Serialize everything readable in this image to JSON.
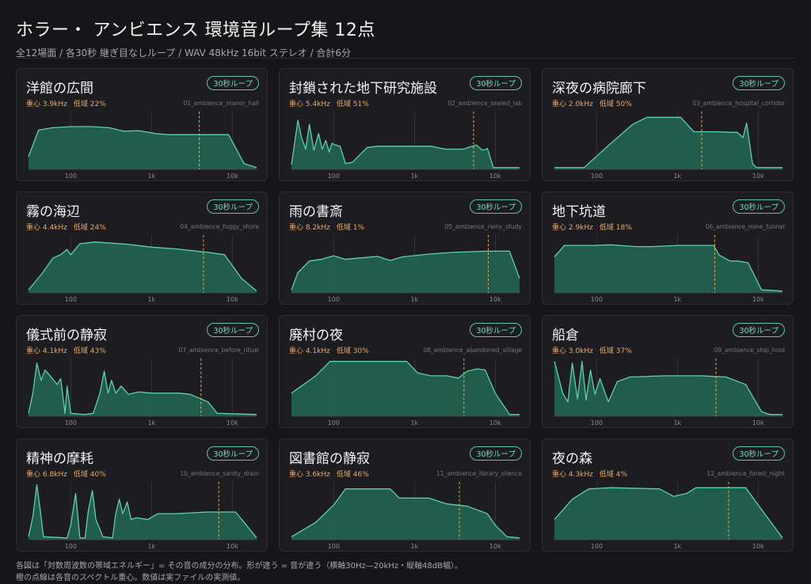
{
  "header": {
    "title": "ホラー・ アンビエンス 環境音ループ集 12点",
    "subtitle": "全12場面 / 各30秒 継ぎ目なしループ / WAV 48kHz 16bit ステレオ / 合計6分"
  },
  "footer": {
    "line1": "各図は「対数周波数の帯域エネルギー」= その音の成分の分布。形が違う = 音が違う（横軸30Hz—20kHz・縦軸48dB幅）。",
    "line2": "橙の点線は各音のスペクトル重心。数値は実ファイルの実測値。"
  },
  "colors": {
    "fill": "#23604e",
    "stroke": "#5fd0ac",
    "centroid": "#e8a86a",
    "gridline": "#3a3a40"
  },
  "chart_data": [
    {
      "type": "area",
      "title": "洋館の広間",
      "badge": "30秒ループ",
      "centroid_label": "重心 3.9kHz",
      "low_label": "低域 22%",
      "file": "01_ambience_manor_hall",
      "x_ticks": [
        "100",
        "1k",
        "10k"
      ],
      "xscale": "log",
      "xlim": [
        30,
        20000
      ],
      "centroid_hz": 3900,
      "points": [
        [
          30,
          0.22
        ],
        [
          40,
          0.68
        ],
        [
          60,
          0.72
        ],
        [
          100,
          0.74
        ],
        [
          180,
          0.74
        ],
        [
          300,
          0.72
        ],
        [
          450,
          0.66
        ],
        [
          700,
          0.67
        ],
        [
          1100,
          0.62
        ],
        [
          1600,
          0.6
        ],
        [
          3000,
          0.6
        ],
        [
          5500,
          0.6
        ],
        [
          9000,
          0.6
        ],
        [
          14000,
          0.1
        ],
        [
          20000,
          0.03
        ]
      ]
    },
    {
      "type": "area",
      "title": "封鎖された地下研究施設",
      "badge": "30秒ループ",
      "centroid_label": "重心 5.4kHz",
      "low_label": "低域 51%",
      "file": "02_ambience_sealed_lab",
      "x_ticks": [
        "100",
        "1k",
        "10k"
      ],
      "xscale": "log",
      "xlim": [
        30,
        20000
      ],
      "centroid_hz": 5400,
      "points": [
        [
          30,
          0.08
        ],
        [
          36,
          0.85
        ],
        [
          40,
          0.55
        ],
        [
          45,
          0.35
        ],
        [
          50,
          0.78
        ],
        [
          57,
          0.33
        ],
        [
          65,
          0.62
        ],
        [
          72,
          0.35
        ],
        [
          80,
          0.5
        ],
        [
          88,
          0.3
        ],
        [
          95,
          0.45
        ],
        [
          105,
          0.42
        ],
        [
          120,
          0.4
        ],
        [
          140,
          0.1
        ],
        [
          170,
          0.12
        ],
        [
          260,
          0.38
        ],
        [
          350,
          0.4
        ],
        [
          1000,
          0.4
        ],
        [
          1600,
          0.4
        ],
        [
          2400,
          0.35
        ],
        [
          4000,
          0.35
        ],
        [
          5800,
          0.42
        ],
        [
          7000,
          0.33
        ],
        [
          8000,
          0.36
        ],
        [
          9500,
          0.03
        ],
        [
          20000,
          0.03
        ]
      ]
    },
    {
      "type": "area",
      "title": "深夜の病院廊下",
      "badge": "30秒ループ",
      "centroid_label": "重心 2.0kHz",
      "low_label": "低域 50%",
      "file": "03_ambience_hospital_corridor",
      "x_ticks": [
        "100",
        "1k",
        "10k"
      ],
      "xscale": "log",
      "xlim": [
        30,
        20000
      ],
      "centroid_hz": 2000,
      "points": [
        [
          30,
          0.03
        ],
        [
          70,
          0.03
        ],
        [
          150,
          0.45
        ],
        [
          280,
          0.78
        ],
        [
          420,
          0.9
        ],
        [
          1100,
          0.9
        ],
        [
          1600,
          0.65
        ],
        [
          3000,
          0.65
        ],
        [
          5500,
          0.64
        ],
        [
          6500,
          0.55
        ],
        [
          7200,
          0.8
        ],
        [
          8500,
          0.1
        ],
        [
          9500,
          0.03
        ],
        [
          20000,
          0.03
        ]
      ]
    },
    {
      "type": "area",
      "title": "霧の海辺",
      "badge": "30秒ループ",
      "centroid_label": "重心 4.4kHz",
      "low_label": "低域 24%",
      "file": "04_ambience_foggy_shore",
      "x_ticks": [
        "100",
        "1k",
        "10k"
      ],
      "xscale": "log",
      "xlim": [
        30,
        20000
      ],
      "centroid_hz": 4400,
      "points": [
        [
          30,
          0.05
        ],
        [
          45,
          0.35
        ],
        [
          60,
          0.6
        ],
        [
          75,
          0.66
        ],
        [
          90,
          0.75
        ],
        [
          100,
          0.66
        ],
        [
          130,
          0.85
        ],
        [
          200,
          0.88
        ],
        [
          500,
          0.84
        ],
        [
          1000,
          0.79
        ],
        [
          2000,
          0.76
        ],
        [
          5000,
          0.7
        ],
        [
          8000,
          0.66
        ],
        [
          13000,
          0.25
        ],
        [
          20000,
          0.03
        ]
      ]
    },
    {
      "type": "area",
      "title": "雨の書斎",
      "badge": "30秒ループ",
      "centroid_label": "重心 8.2kHz",
      "low_label": "低域 1%",
      "file": "05_ambience_rainy_study",
      "x_ticks": [
        "100",
        "1k",
        "10k"
      ],
      "xscale": "log",
      "xlim": [
        30,
        20000
      ],
      "centroid_hz": 8200,
      "points": [
        [
          30,
          0.05
        ],
        [
          36,
          0.35
        ],
        [
          50,
          0.55
        ],
        [
          70,
          0.58
        ],
        [
          100,
          0.64
        ],
        [
          140,
          0.58
        ],
        [
          200,
          0.6
        ],
        [
          350,
          0.63
        ],
        [
          500,
          0.56
        ],
        [
          700,
          0.62
        ],
        [
          1500,
          0.67
        ],
        [
          3000,
          0.7
        ],
        [
          8000,
          0.72
        ],
        [
          15000,
          0.72
        ],
        [
          20000,
          0.25
        ]
      ]
    },
    {
      "type": "area",
      "title": "地下坑道",
      "badge": "30秒ループ",
      "centroid_label": "重心 2.9kHz",
      "low_label": "低域 18%",
      "file": "06_ambience_mine_tunnel",
      "x_ticks": [
        "100",
        "1k",
        "10k"
      ],
      "xscale": "log",
      "xlim": [
        30,
        20000
      ],
      "centroid_hz": 2900,
      "points": [
        [
          30,
          0.62
        ],
        [
          40,
          0.82
        ],
        [
          90,
          0.82
        ],
        [
          150,
          0.83
        ],
        [
          300,
          0.8
        ],
        [
          500,
          0.8
        ],
        [
          1000,
          0.82
        ],
        [
          2800,
          0.82
        ],
        [
          3300,
          0.65
        ],
        [
          4500,
          0.55
        ],
        [
          5500,
          0.55
        ],
        [
          7500,
          0.52
        ],
        [
          11000,
          0.05
        ],
        [
          20000,
          0.03
        ]
      ]
    },
    {
      "type": "area",
      "title": "儀式前の静寂",
      "badge": "30秒ループ",
      "centroid_label": "重心 4.1kHz",
      "low_label": "低域 43%",
      "file": "07_ambience_before_ritual",
      "x_ticks": [
        "100",
        "1k",
        "10k"
      ],
      "xscale": "log",
      "xlim": [
        30,
        20000
      ],
      "centroid_hz": 4100,
      "points": [
        [
          30,
          0.05
        ],
        [
          34,
          0.4
        ],
        [
          38,
          0.92
        ],
        [
          43,
          0.62
        ],
        [
          48,
          0.8
        ],
        [
          54,
          0.72
        ],
        [
          60,
          0.64
        ],
        [
          68,
          0.55
        ],
        [
          75,
          0.65
        ],
        [
          85,
          0.05
        ],
        [
          90,
          0.52
        ],
        [
          100,
          0.05
        ],
        [
          150,
          0.03
        ],
        [
          190,
          0.05
        ],
        [
          230,
          0.4
        ],
        [
          260,
          0.78
        ],
        [
          290,
          0.4
        ],
        [
          320,
          0.62
        ],
        [
          360,
          0.4
        ],
        [
          420,
          0.52
        ],
        [
          520,
          0.38
        ],
        [
          700,
          0.42
        ],
        [
          1000,
          0.4
        ],
        [
          2200,
          0.4
        ],
        [
          3000,
          0.38
        ],
        [
          5000,
          0.25
        ],
        [
          6500,
          0.05
        ],
        [
          20000,
          0.03
        ]
      ]
    },
    {
      "type": "area",
      "title": "廃村の夜",
      "badge": "30秒ループ",
      "centroid_label": "重心 4.1kHz",
      "low_label": "低域 30%",
      "file": "08_ambience_abandoned_village",
      "x_ticks": [
        "100",
        "1k",
        "10k"
      ],
      "xscale": "log",
      "xlim": [
        30,
        20000
      ],
      "centroid_hz": 4100,
      "points": [
        [
          30,
          0.4
        ],
        [
          60,
          0.7
        ],
        [
          90,
          0.95
        ],
        [
          800,
          0.95
        ],
        [
          1100,
          0.75
        ],
        [
          1600,
          0.7
        ],
        [
          2500,
          0.7
        ],
        [
          3500,
          0.66
        ],
        [
          4500,
          0.78
        ],
        [
          6000,
          0.82
        ],
        [
          7500,
          0.8
        ],
        [
          10000,
          0.4
        ],
        [
          15000,
          0.03
        ],
        [
          20000,
          0.03
        ]
      ]
    },
    {
      "type": "area",
      "title": "船倉",
      "badge": "30秒ループ",
      "centroid_label": "重心 3.0kHz",
      "low_label": "低域 37%",
      "file": "09_ambience_ship_hold",
      "x_ticks": [
        "100",
        "1k",
        "10k"
      ],
      "xscale": "log",
      "xlim": [
        30,
        20000
      ],
      "centroid_hz": 3000,
      "points": [
        [
          30,
          0.95
        ],
        [
          38,
          0.4
        ],
        [
          44,
          0.25
        ],
        [
          50,
          0.92
        ],
        [
          58,
          0.3
        ],
        [
          66,
          0.95
        ],
        [
          74,
          0.28
        ],
        [
          84,
          0.8
        ],
        [
          95,
          0.38
        ],
        [
          110,
          0.65
        ],
        [
          140,
          0.25
        ],
        [
          180,
          0.6
        ],
        [
          260,
          0.68
        ],
        [
          700,
          0.7
        ],
        [
          2000,
          0.7
        ],
        [
          4000,
          0.68
        ],
        [
          7000,
          0.55
        ],
        [
          11000,
          0.08
        ],
        [
          14000,
          0.03
        ],
        [
          20000,
          0.03
        ]
      ]
    },
    {
      "type": "area",
      "title": "精神の摩耗",
      "badge": "30秒ループ",
      "centroid_label": "重心 6.8kHz",
      "low_label": "低域 40%",
      "file": "10_ambience_sanity_drain",
      "x_ticks": [
        "100",
        "1k",
        "10k"
      ],
      "xscale": "log",
      "xlim": [
        30,
        20000
      ],
      "centroid_hz": 6800,
      "points": [
        [
          30,
          0.05
        ],
        [
          34,
          0.4
        ],
        [
          38,
          0.95
        ],
        [
          42,
          0.5
        ],
        [
          46,
          0.05
        ],
        [
          90,
          0.03
        ],
        [
          100,
          0.25
        ],
        [
          115,
          0.8
        ],
        [
          130,
          0.03
        ],
        [
          150,
          0.03
        ],
        [
          165,
          0.5
        ],
        [
          185,
          0.85
        ],
        [
          205,
          0.35
        ],
        [
          250,
          0.05
        ],
        [
          330,
          0.03
        ],
        [
          360,
          0.45
        ],
        [
          400,
          0.7
        ],
        [
          440,
          0.45
        ],
        [
          500,
          0.65
        ],
        [
          560,
          0.35
        ],
        [
          650,
          0.38
        ],
        [
          900,
          0.35
        ],
        [
          1200,
          0.45
        ],
        [
          2000,
          0.45
        ],
        [
          5000,
          0.48
        ],
        [
          11000,
          0.48
        ],
        [
          15000,
          0.25
        ],
        [
          20000,
          0.03
        ]
      ]
    },
    {
      "type": "area",
      "title": "図書館の静寂",
      "badge": "30秒ループ",
      "centroid_label": "重心 3.6kHz",
      "low_label": "低域 46%",
      "file": "11_ambience_library_silence",
      "x_ticks": [
        "100",
        "1k",
        "10k"
      ],
      "xscale": "log",
      "xlim": [
        30,
        20000
      ],
      "centroid_hz": 3600,
      "points": [
        [
          30,
          0.05
        ],
        [
          60,
          0.3
        ],
        [
          100,
          0.6
        ],
        [
          140,
          0.88
        ],
        [
          500,
          0.88
        ],
        [
          650,
          0.72
        ],
        [
          1500,
          0.72
        ],
        [
          2500,
          0.62
        ],
        [
          4500,
          0.58
        ],
        [
          8000,
          0.45
        ],
        [
          10000,
          0.25
        ],
        [
          14000,
          0.05
        ],
        [
          20000,
          0.03
        ]
      ]
    },
    {
      "type": "area",
      "title": "夜の森",
      "badge": "30秒ループ",
      "centroid_label": "重心 4.3kHz",
      "low_label": "低域 4%",
      "file": "12_ambience_forest_night",
      "x_ticks": [
        "100",
        "1k",
        "10k"
      ],
      "xscale": "log",
      "xlim": [
        30,
        20000
      ],
      "centroid_hz": 4300,
      "points": [
        [
          30,
          0.35
        ],
        [
          50,
          0.7
        ],
        [
          80,
          0.88
        ],
        [
          150,
          0.9
        ],
        [
          600,
          0.88
        ],
        [
          900,
          0.75
        ],
        [
          1300,
          0.8
        ],
        [
          1700,
          0.9
        ],
        [
          4000,
          0.9
        ],
        [
          7000,
          0.9
        ],
        [
          12000,
          0.45
        ],
        [
          20000,
          0.03
        ]
      ]
    }
  ]
}
